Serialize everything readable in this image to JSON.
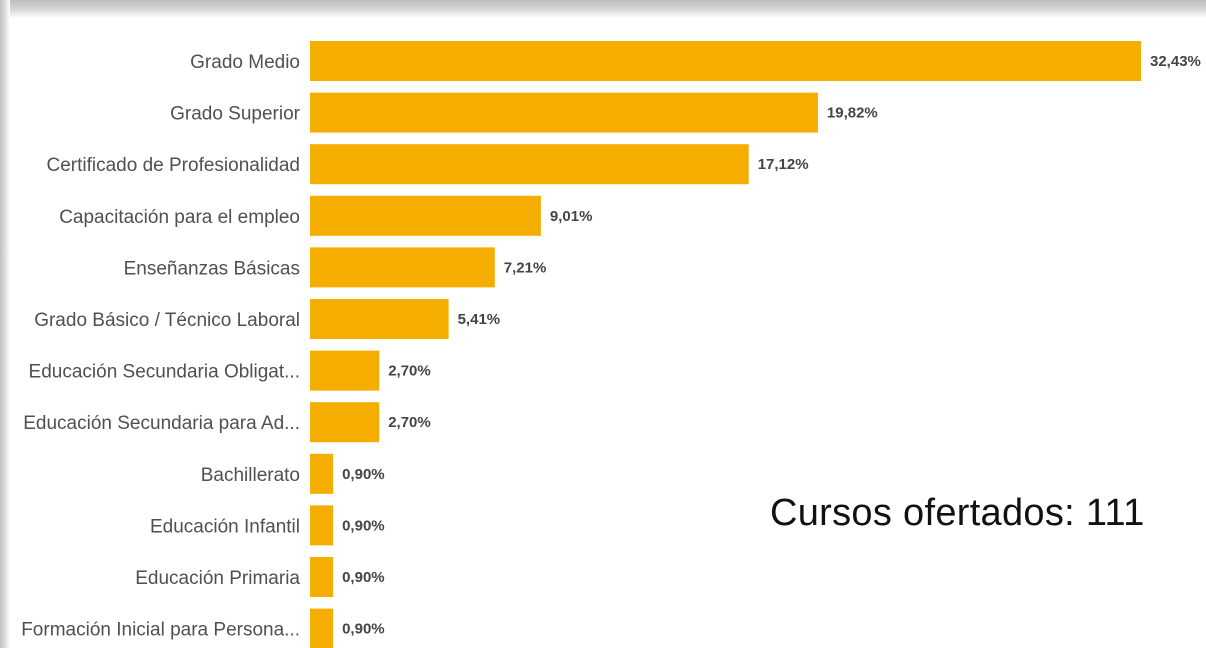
{
  "chart_data": {
    "type": "bar",
    "orientation": "horizontal",
    "categories": [
      "Grado Medio",
      "Grado Superior",
      "Certificado de Profesionalidad",
      "Capacitación para el empleo",
      "Enseñanzas Básicas",
      "Grado Básico / Técnico Laboral",
      "Educación Secundaria Obligat...",
      "Educación Secundaria para Ad...",
      "Bachillerato",
      "Educación Infantil",
      "Educación Primaria",
      "Formación Inicial para Persona..."
    ],
    "values": [
      32.43,
      19.82,
      17.12,
      9.01,
      7.21,
      5.41,
      2.7,
      2.7,
      0.9,
      0.9,
      0.9,
      0.9
    ],
    "value_labels": [
      "32,43%",
      "19,82%",
      "17,12%",
      "9,01%",
      "7,21%",
      "5,41%",
      "2,70%",
      "2,70%",
      "0,90%",
      "0,90%",
      "0,90%",
      "0,90%"
    ],
    "xlim": [
      0,
      32.43
    ],
    "grid": false,
    "bar_color": "#F5AD00"
  },
  "annotation": "Cursos ofertados: 111"
}
